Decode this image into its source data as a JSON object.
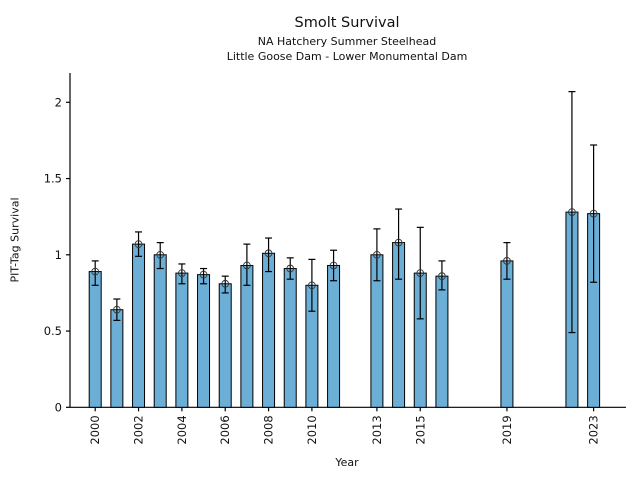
{
  "chart_data": {
    "type": "bar",
    "title": "Smolt Survival",
    "subtitle1": "NA Hatchery Summer Steelhead",
    "subtitle2": "Little Goose Dam - Lower Monumental Dam",
    "xlabel": "Year",
    "ylabel": "PIT-Tag Survival",
    "yticks": [
      0,
      0.5,
      1,
      1.5,
      2
    ],
    "xticks": [
      2000,
      2002,
      2004,
      2006,
      2008,
      2010,
      2013,
      2015,
      2019,
      2023
    ],
    "ylim": [
      0,
      2.2
    ],
    "xlim": [
      1998.8,
      2024.6
    ],
    "grid": false,
    "legend": "none",
    "bar_color": "#6BAED6",
    "bar_edge_color": "#000000",
    "error_color": "#000000",
    "marker": "open-circle",
    "series": [
      {
        "name": "PIT-Tag Survival",
        "points": [
          {
            "year": 2000,
            "value": 0.89,
            "ci_low": 0.8,
            "ci_high": 0.96
          },
          {
            "year": 2001,
            "value": 0.64,
            "ci_low": 0.57,
            "ci_high": 0.71
          },
          {
            "year": 2002,
            "value": 1.07,
            "ci_low": 0.99,
            "ci_high": 1.15
          },
          {
            "year": 2003,
            "value": 1.0,
            "ci_low": 0.91,
            "ci_high": 1.08
          },
          {
            "year": 2004,
            "value": 0.88,
            "ci_low": 0.81,
            "ci_high": 0.94
          },
          {
            "year": 2005,
            "value": 0.87,
            "ci_low": 0.81,
            "ci_high": 0.91
          },
          {
            "year": 2006,
            "value": 0.81,
            "ci_low": 0.75,
            "ci_high": 0.86
          },
          {
            "year": 2007,
            "value": 0.93,
            "ci_low": 0.8,
            "ci_high": 1.07
          },
          {
            "year": 2008,
            "value": 1.01,
            "ci_low": 0.89,
            "ci_high": 1.11
          },
          {
            "year": 2009,
            "value": 0.91,
            "ci_low": 0.84,
            "ci_high": 0.98
          },
          {
            "year": 2010,
            "value": 0.8,
            "ci_low": 0.63,
            "ci_high": 0.97
          },
          {
            "year": 2011,
            "value": 0.93,
            "ci_low": 0.83,
            "ci_high": 1.03
          },
          {
            "year": 2013,
            "value": 1.0,
            "ci_low": 0.83,
            "ci_high": 1.17
          },
          {
            "year": 2014,
            "value": 1.08,
            "ci_low": 0.84,
            "ci_high": 1.3
          },
          {
            "year": 2015,
            "value": 0.88,
            "ci_low": 0.58,
            "ci_high": 1.18
          },
          {
            "year": 2016,
            "value": 0.86,
            "ci_low": 0.77,
            "ci_high": 0.96
          },
          {
            "year": 2019,
            "value": 0.96,
            "ci_low": 0.84,
            "ci_high": 1.08
          },
          {
            "year": 2022,
            "value": 1.28,
            "ci_low": 0.49,
            "ci_high": 2.07
          },
          {
            "year": 2023,
            "value": 1.27,
            "ci_low": 0.82,
            "ci_high": 1.72
          }
        ]
      }
    ]
  }
}
